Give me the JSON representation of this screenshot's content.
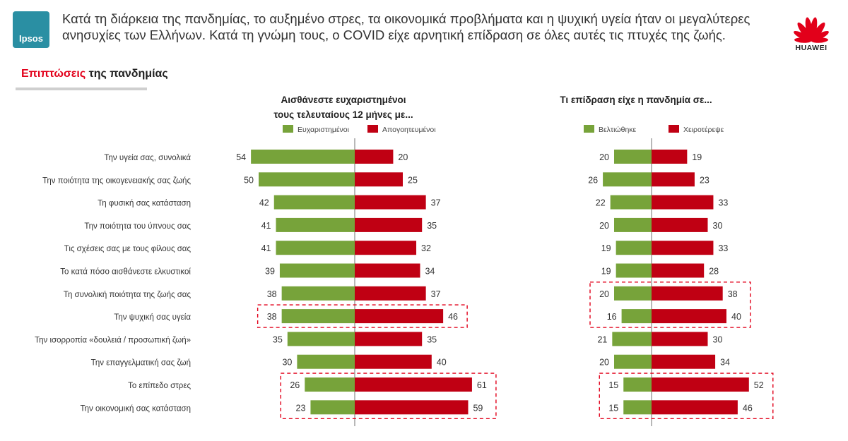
{
  "header": {
    "logo_text": "Ipsos",
    "headline": "Κατά τη διάρκεια της πανδημίας, το αυξημένο στρες, τα οικονομικά προβλήματα και η ψυχική υγεία ήταν οι μεγαλύτερες ανησυχίες των Ελλήνων. Κατά τη γνώμη τους, ο COVID είχε αρνητική επίδραση σε όλες αυτές τις πτυχές της ζωής.",
    "brand_text": "HUAWEI"
  },
  "section": {
    "title_highlight": "Επιπτώσεις",
    "title_rest": " της πανδημίας"
  },
  "colors": {
    "green": "#77a33a",
    "red": "#c00013",
    "highlight_box": "#e2001a",
    "axis": "#8a8a8a"
  },
  "chart_data": [
    {
      "type": "bar",
      "title_lines": [
        "Αισθάνεστε ευχαριστημένοι",
        "τους τελευταίους 12 μήνες με..."
      ],
      "categories": [
        "Την υγεία σας, συνολικά",
        "Την ποιότητα της οικογενειακής σας ζωής",
        "Τη φυσική σας κατάσταση",
        "Την ποιότητα του ύπνους σας",
        "Τις σχέσεις σας με τους φίλους σας",
        "Το κατά πόσο αισθάνεστε ελκυστικοί",
        "Τη συνολική ποιότητα της ζωής σας",
        "Την ψυχική σας υγεία",
        "Την ισορροπία «δουλειά / προσωπική ζωή»",
        "Την επαγγελματική σας ζωή",
        "Το επίπεδο στρες",
        "Την οικονομική σας κατάσταση"
      ],
      "series": [
        {
          "name": "Ευχαριστημένοι",
          "values": [
            54,
            50,
            42,
            41,
            41,
            39,
            38,
            38,
            35,
            30,
            26,
            23
          ]
        },
        {
          "name": "Απογοητευμένοι",
          "values": [
            20,
            25,
            37,
            35,
            32,
            34,
            37,
            46,
            35,
            40,
            61,
            59
          ]
        }
      ],
      "highlighted_rows": [
        [
          7
        ],
        [
          10,
          11
        ]
      ],
      "orientation": "diverging-horizontal",
      "grid": false,
      "legend_position": "top"
    },
    {
      "type": "bar",
      "title_lines": [
        "Τι επίδραση είχε η πανδημία σε..."
      ],
      "categories": [
        "Την υγεία σας, συνολικά",
        "Την ποιότητα της οικογενειακής σας ζωής",
        "Τη φυσική σας κατάσταση",
        "Την ποιότητα του ύπνους σας",
        "Τις σχέσεις σας με τους φίλους σας",
        "Το κατά πόσο αισθάνεστε ελκυστικοί",
        "Τη συνολική ποιότητα της ζωής σας",
        "Την ψυχική σας υγεία",
        "Την ισορροπία «δουλειά / προσωπική ζωή»",
        "Την επαγγελματική σας ζωή",
        "Το επίπεδο στρες",
        "Την οικονομική σας κατάσταση"
      ],
      "series": [
        {
          "name": "Βελτιώθηκε",
          "values": [
            20,
            26,
            22,
            20,
            19,
            19,
            20,
            16,
            21,
            20,
            15,
            15
          ]
        },
        {
          "name": "Χειροτέρεψε",
          "values": [
            19,
            23,
            33,
            30,
            33,
            28,
            38,
            40,
            30,
            34,
            52,
            46
          ]
        }
      ],
      "highlighted_rows": [
        [
          6,
          7
        ],
        [
          10,
          11
        ]
      ],
      "orientation": "diverging-horizontal",
      "grid": false,
      "legend_position": "top"
    }
  ]
}
